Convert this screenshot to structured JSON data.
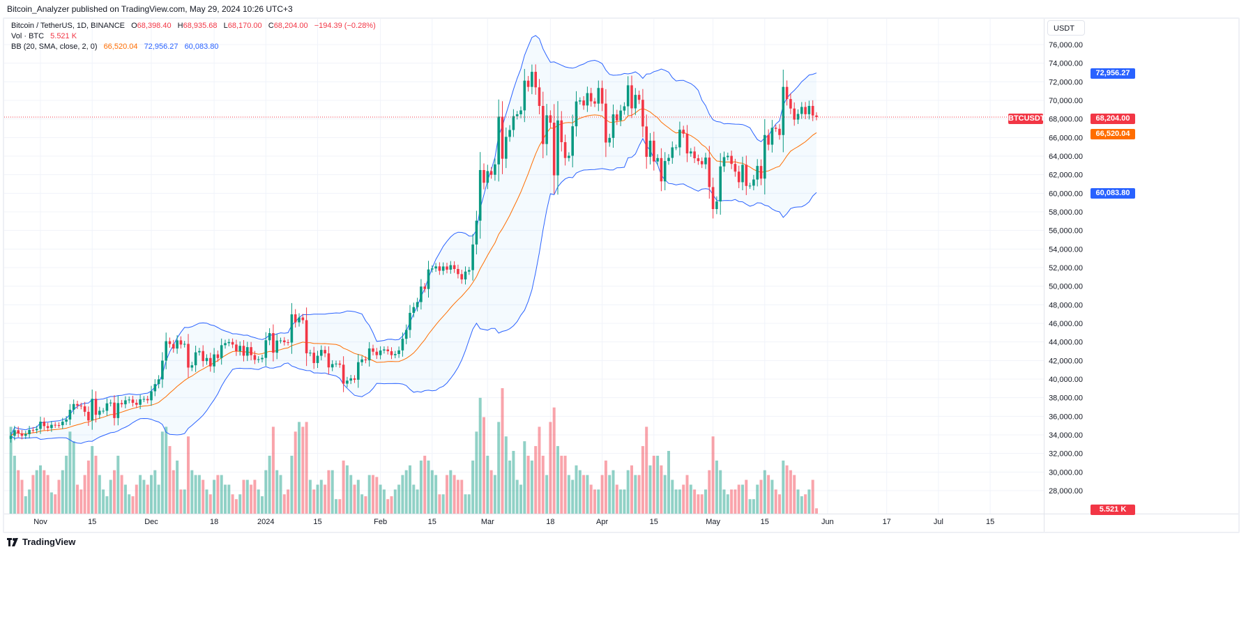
{
  "published": "Bitcoin_Analyzer published on TradingView.com, May 29, 2024 10:26 UTC+3",
  "legend": {
    "symbol": "Bitcoin / TetherUS, 1D, BINANCE",
    "open_label": "O",
    "open": "68,398.40",
    "high_label": "H",
    "high": "68,935.68",
    "low_label": "L",
    "low": "68,170.00",
    "close_label": "C",
    "close": "68,204.00",
    "change": "−194.39 (−0.28%)",
    "vol_label": "Vol · BTC",
    "vol": "5.521 K",
    "bb_label": "BB (20, SMA, close, 2, 0)",
    "bb_basis": "66,520.04",
    "bb_upper": "72,956.27",
    "bb_lower": "60,083.80"
  },
  "currency_button": "USDT",
  "badges": {
    "bb_upper": "72,956.27",
    "last_price": "68,204.00",
    "symbol": "BTCUSDT",
    "bb_basis": "66,520.04",
    "bb_lower": "60,083.80",
    "volume": "5.521 K"
  },
  "footer_brand": "TradingView",
  "colors": {
    "up": "#089981",
    "down": "#f23645",
    "bb_band": "#2962ff",
    "bb_basis": "#ff6d00",
    "accent_blue": "#2962ff"
  },
  "chart_data": {
    "type": "candlestick",
    "title": "",
    "ylim": [
      26000,
      78000
    ],
    "y_ticks": [
      "76,000.00",
      "74,000.00",
      "72,000.00",
      "70,000.00",
      "68,000.00",
      "66,000.00",
      "64,000.00",
      "62,000.00",
      "60,000.00",
      "58,000.00",
      "56,000.00",
      "54,000.00",
      "52,000.00",
      "50,000.00",
      "48,000.00",
      "46,000.00",
      "44,000.00",
      "42,000.00",
      "40,000.00",
      "38,000.00",
      "36,000.00",
      "34,000.00",
      "32,000.00",
      "30,000.00",
      "28,000.00"
    ],
    "x_ticks": [
      {
        "label": "Nov",
        "date": "2023-11-01"
      },
      {
        "label": "15",
        "date": "2023-11-15"
      },
      {
        "label": "Dec",
        "date": "2023-12-01"
      },
      {
        "label": "18",
        "date": "2023-12-18"
      },
      {
        "label": "2024",
        "date": "2024-01-01"
      },
      {
        "label": "15",
        "date": "2024-01-15"
      },
      {
        "label": "Feb",
        "date": "2024-02-01"
      },
      {
        "label": "15",
        "date": "2024-02-15"
      },
      {
        "label": "Mar",
        "date": "2024-03-01"
      },
      {
        "label": "18",
        "date": "2024-03-18"
      },
      {
        "label": "Apr",
        "date": "2024-04-01"
      },
      {
        "label": "15",
        "date": "2024-04-15"
      },
      {
        "label": "May",
        "date": "2024-05-01"
      },
      {
        "label": "15",
        "date": "2024-05-15"
      },
      {
        "label": "Jun",
        "date": "2024-06-01"
      },
      {
        "label": "17",
        "date": "2024-06-17"
      },
      {
        "label": "Jul",
        "date": "2024-07-01"
      },
      {
        "label": "15",
        "date": "2024-07-15"
      }
    ],
    "indicators": {
      "bollinger": {
        "length": 20,
        "ma": "SMA",
        "source": "close",
        "mult": 2
      }
    },
    "volume_unit": "K BTC",
    "months": [
      {
        "month": "2023-10",
        "first_day": 24,
        "close": [
          33900,
          34500,
          34150,
          33900,
          34080,
          34530,
          34500,
          34640
        ],
        "volume": [
          90,
          60,
          45,
          35,
          18,
          25,
          40,
          45
        ]
      },
      {
        "month": "2023-11",
        "first_day": 1,
        "close": [
          35420,
          34940,
          34730,
          35080,
          35050,
          35040,
          35420,
          35650,
          36700,
          37320,
          37140,
          37070,
          36480,
          35550,
          37880,
          36160,
          36590,
          36590,
          37390,
          37470,
          35810,
          37420,
          37290,
          37720,
          37800,
          37450,
          37240,
          37830,
          37860,
          37720
        ],
        "volume": [
          50,
          45,
          40,
          22,
          20,
          35,
          45,
          60,
          85,
          75,
          30,
          25,
          40,
          55,
          70,
          60,
          40,
          25,
          18,
          35,
          45,
          60,
          40,
          30,
          20,
          18,
          30,
          40,
          35,
          30
        ]
      },
      {
        "month": "2023-12",
        "first_day": 1,
        "close": [
          38690,
          39460,
          39970,
          41990,
          44080,
          43770,
          43290,
          44170,
          43720,
          43790,
          41240,
          41490,
          42880,
          43020,
          41940,
          42270,
          41370,
          42660,
          42270,
          43650,
          43870,
          43990,
          43720,
          43010,
          43580,
          42520,
          43440,
          42580,
          42070,
          42140,
          42280
        ],
        "volume": [
          40,
          45,
          30,
          85,
          90,
          70,
          45,
          55,
          25,
          25,
          80,
          45,
          40,
          40,
          35,
          25,
          20,
          35,
          40,
          40,
          30,
          30,
          20,
          15,
          20,
          35,
          35,
          30,
          35,
          25,
          18
        ]
      },
      {
        "month": "2024-01",
        "first_day": 1,
        "close": [
          44180,
          44950,
          42840,
          44150,
          44160,
          43970,
          43930,
          46970,
          46110,
          46630,
          46340,
          42780,
          42840,
          41730,
          42510,
          43140,
          42770,
          41260,
          41620,
          41670,
          41550,
          39510,
          39840,
          40080,
          39930,
          41820,
          42120,
          42030,
          43300,
          42950,
          42580
        ],
        "volume": [
          45,
          60,
          90,
          45,
          40,
          20,
          25,
          60,
          85,
          95,
          90,
          95,
          35,
          25,
          30,
          35,
          30,
          45,
          45,
          15,
          15,
          55,
          50,
          40,
          30,
          35,
          20,
          18,
          40,
          40,
          38
        ]
      },
      {
        "month": "2024-02",
        "first_day": 1,
        "close": [
          43080,
          43190,
          43000,
          42580,
          42700,
          43090,
          44340,
          45290,
          47130,
          47750,
          48290,
          49960,
          49700,
          51800,
          51910,
          52130,
          51660,
          52120,
          51780,
          52260,
          51850,
          51300,
          50730,
          51570,
          51730,
          54490,
          57050,
          62500,
          61130
        ],
        "volume": [
          30,
          25,
          15,
          18,
          25,
          30,
          40,
          45,
          50,
          30,
          25,
          55,
          60,
          55,
          45,
          40,
          20,
          20,
          40,
          45,
          40,
          35,
          35,
          20,
          20,
          55,
          85,
          120,
          100
        ]
      },
      {
        "month": "2024-03",
        "first_day": 1,
        "close": [
          62390,
          61990,
          63110,
          68250,
          63720,
          66070,
          66810,
          68300,
          68500,
          68920,
          72120,
          71450,
          73070,
          71400,
          69400,
          65300,
          68390,
          67600,
          61930,
          67840,
          65500,
          63800,
          64040,
          67210,
          69880,
          69990,
          69450,
          70780,
          69890,
          69650,
          71330
        ],
        "volume": [
          60,
          45,
          40,
          95,
          130,
          80,
          55,
          65,
          35,
          30,
          75,
          60,
          55,
          70,
          90,
          60,
          40,
          95,
          110,
          70,
          60,
          60,
          40,
          35,
          50,
          45,
          40,
          40,
          30,
          25,
          25
        ]
      },
      {
        "month": "2024-04",
        "first_day": 1,
        "close": [
          69650,
          65460,
          65960,
          68490,
          67840,
          68900,
          69360,
          71620,
          69140,
          70590,
          70060,
          67190,
          63920,
          65660,
          63420,
          63790,
          61280,
          63470,
          63810,
          64940,
          64940,
          66840,
          66410,
          64290,
          64500,
          63770,
          63460,
          63120,
          63840,
          60670
        ],
        "volume": [
          40,
          55,
          40,
          45,
          30,
          25,
          25,
          45,
          50,
          40,
          40,
          70,
          90,
          50,
          60,
          60,
          50,
          40,
          65,
          35,
          25,
          25,
          30,
          40,
          30,
          25,
          20,
          20,
          25,
          45
        ]
      },
      {
        "month": "2024-05",
        "first_day": 1,
        "close": [
          58300,
          59120,
          62890,
          63890,
          64030,
          63160,
          62330,
          61190,
          63070,
          60790,
          60820,
          61480,
          62940,
          61580,
          66270,
          65230,
          67050,
          66940,
          66270,
          71450,
          70140,
          69120,
          67930,
          68540,
          69290,
          68510,
          69400,
          68370,
          68204
        ],
        "volume": [
          80,
          55,
          45,
          25,
          20,
          25,
          25,
          30,
          30,
          35,
          15,
          15,
          30,
          35,
          45,
          40,
          35,
          25,
          20,
          55,
          50,
          45,
          40,
          25,
          18,
          20,
          25,
          35,
          5.521
        ]
      }
    ]
  }
}
